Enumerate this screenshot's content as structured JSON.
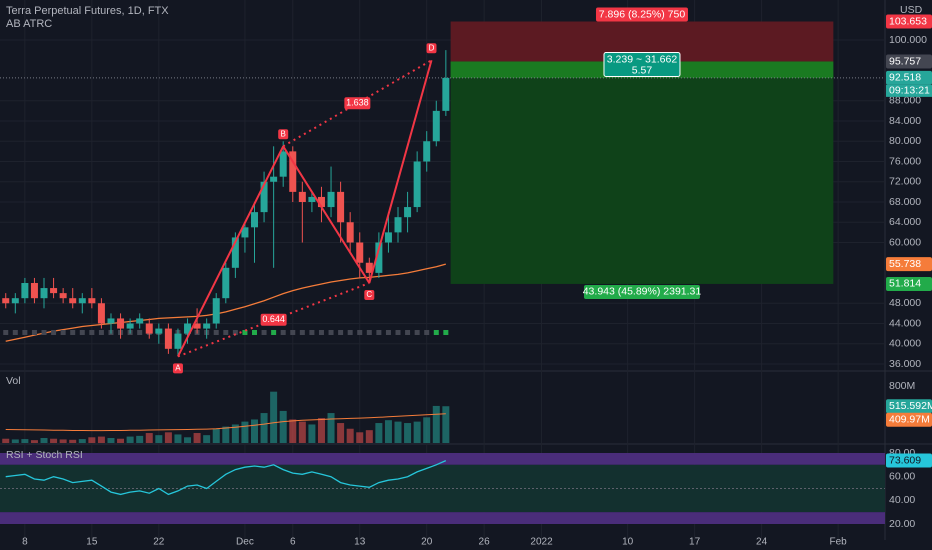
{
  "chart_data": [
    {
      "type": "candlestick",
      "symbol": "Terra Perpetual Futures, 1D, FTX",
      "indicator": "AB ATRC",
      "currency": "USD",
      "up_color": "#26a69a",
      "down_color": "#ef5350",
      "ma_color": "#f57c3a",
      "grid": true,
      "xlim": [
        -0.6,
        91.9
      ],
      "xticks": [
        {
          "value": 2,
          "label": "8"
        },
        {
          "value": 9,
          "label": "15"
        },
        {
          "value": 16,
          "label": "22"
        },
        {
          "value": 25,
          "label": "Dec"
        },
        {
          "value": 30,
          "label": "6"
        },
        {
          "value": 37,
          "label": "13"
        },
        {
          "value": 44,
          "label": "20"
        },
        {
          "value": 50,
          "label": "26"
        },
        {
          "value": 56,
          "label": "2022"
        },
        {
          "value": 65,
          "label": "10"
        },
        {
          "value": 72,
          "label": "17"
        },
        {
          "value": 79,
          "label": "24"
        },
        {
          "value": 87,
          "label": "Feb"
        }
      ],
      "ylim": [
        34.815,
        107.901
      ],
      "yticks": [
        {
          "value": 36,
          "label": "36.000"
        },
        {
          "value": 40,
          "label": "40.000"
        },
        {
          "value": 44,
          "label": "44.000"
        },
        {
          "value": 48,
          "label": "48.000"
        },
        {
          "value": 60,
          "label": "60.000"
        },
        {
          "value": 64,
          "label": "64.000"
        },
        {
          "value": 68,
          "label": "68.000"
        },
        {
          "value": 72,
          "label": "72.000"
        },
        {
          "value": 76,
          "label": "76.000"
        },
        {
          "value": 80,
          "label": "80.000"
        },
        {
          "value": 84,
          "label": "84.000"
        },
        {
          "value": 88,
          "label": "88.000"
        },
        {
          "value": 100,
          "label": "100.000"
        }
      ],
      "candles": [
        {
          "open": 49,
          "high": 50,
          "low": 47,
          "close": 48
        },
        {
          "open": 48,
          "high": 50,
          "low": 46,
          "close": 49
        },
        {
          "open": 49,
          "high": 53,
          "low": 48,
          "close": 52
        },
        {
          "open": 52,
          "high": 53,
          "low": 48,
          "close": 49
        },
        {
          "open": 49,
          "high": 53,
          "low": 47,
          "close": 51
        },
        {
          "open": 51,
          "high": 53,
          "low": 49,
          "close": 50
        },
        {
          "open": 50,
          "high": 51,
          "low": 48,
          "close": 49
        },
        {
          "open": 49,
          "high": 51,
          "low": 47,
          "close": 48
        },
        {
          "open": 48,
          "high": 50,
          "low": 46,
          "close": 49
        },
        {
          "open": 49,
          "high": 51,
          "low": 47,
          "close": 48
        },
        {
          "open": 48,
          "high": 49,
          "low": 43,
          "close": 44
        },
        {
          "open": 44,
          "high": 46,
          "low": 42,
          "close": 45
        },
        {
          "open": 45,
          "high": 46,
          "low": 41,
          "close": 43
        },
        {
          "open": 43,
          "high": 45,
          "low": 42,
          "close": 44
        },
        {
          "open": 44,
          "high": 46,
          "low": 43,
          "close": 45
        },
        {
          "open": 44,
          "high": 45,
          "low": 41,
          "close": 42
        },
        {
          "open": 42,
          "high": 44,
          "low": 40,
          "close": 43
        },
        {
          "open": 43,
          "high": 44,
          "low": 38,
          "close": 39
        },
        {
          "open": 39,
          "high": 43,
          "low": 37.5,
          "close": 42
        },
        {
          "open": 42,
          "high": 45,
          "low": 40,
          "close": 44
        },
        {
          "open": 44,
          "high": 47,
          "low": 42,
          "close": 43
        },
        {
          "open": 43,
          "high": 45,
          "low": 41,
          "close": 44
        },
        {
          "open": 44,
          "high": 50,
          "low": 43,
          "close": 49
        },
        {
          "open": 49,
          "high": 56,
          "low": 48,
          "close": 55
        },
        {
          "open": 55,
          "high": 62,
          "low": 53,
          "close": 61
        },
        {
          "open": 61,
          "high": 64,
          "low": 58,
          "close": 63
        },
        {
          "open": 63,
          "high": 68,
          "low": 56,
          "close": 66
        },
        {
          "open": 66,
          "high": 74,
          "low": 64,
          "close": 72
        },
        {
          "open": 72,
          "high": 79,
          "low": 55,
          "close": 73
        },
        {
          "open": 73,
          "high": 80,
          "low": 71,
          "close": 78
        },
        {
          "open": 78,
          "high": 79,
          "low": 68,
          "close": 70
        },
        {
          "open": 70,
          "high": 72,
          "low": 60,
          "close": 68
        },
        {
          "open": 68,
          "high": 70,
          "low": 66,
          "close": 69
        },
        {
          "open": 69,
          "high": 71,
          "low": 64,
          "close": 67
        },
        {
          "open": 67,
          "high": 75,
          "low": 65,
          "close": 70
        },
        {
          "open": 70,
          "high": 72,
          "low": 60,
          "close": 64
        },
        {
          "open": 64,
          "high": 66,
          "low": 58,
          "close": 60
        },
        {
          "open": 60,
          "high": 62,
          "low": 53,
          "close": 56
        },
        {
          "open": 56,
          "high": 57,
          "low": 52,
          "close": 54
        },
        {
          "open": 54,
          "high": 62,
          "low": 53,
          "close": 60
        },
        {
          "open": 60,
          "high": 66,
          "low": 58,
          "close": 62
        },
        {
          "open": 62,
          "high": 67,
          "low": 60,
          "close": 65
        },
        {
          "open": 65,
          "high": 70,
          "low": 62,
          "close": 67
        },
        {
          "open": 67,
          "high": 78,
          "low": 66,
          "close": 76
        },
        {
          "open": 76,
          "high": 82,
          "low": 74,
          "close": 80
        },
        {
          "open": 80,
          "high": 88,
          "low": 79,
          "close": 86
        },
        {
          "open": 86,
          "high": 98,
          "low": 85,
          "close": 92.518
        }
      ],
      "timer": "09:13:21",
      "ma": [
        40.5,
        40.9,
        41.3,
        41.7,
        42.1,
        42.5,
        42.8,
        43.1,
        43.4,
        43.6,
        43.8,
        44,
        44.2,
        44.4,
        44.6,
        44.8,
        45,
        45.1,
        45.2,
        45.3,
        45.4,
        45.6,
        45.9,
        46.3,
        46.8,
        47.3,
        47.9,
        48.5,
        49.2,
        49.9,
        50.5,
        51,
        51.4,
        51.8,
        52.2,
        52.5,
        52.8,
        53,
        53.1,
        53.3,
        53.5,
        53.7,
        54,
        54.4,
        54.8,
        55.2,
        55.738
      ],
      "squares": [
        "#434651",
        "#434651",
        "#434651",
        "#434651",
        "#434651",
        "#434651",
        "#434651",
        "#434651",
        "#434651",
        "#434651",
        "#434651",
        "#434651",
        "#434651",
        "#434651",
        "#434651",
        "#434651",
        "#434651",
        "#434651",
        "#434651",
        "#434651",
        "#434651",
        "#434651",
        "#434651",
        "#434651",
        "#434651",
        "#22ab4a",
        "#22ab4a",
        "#434651",
        "#22ab4a",
        "#434651",
        "#434651",
        "#434651",
        "#434651",
        "#434651",
        "#434651",
        "#434651",
        "#434651",
        "#434651",
        "#434651",
        "#434651",
        "#434651",
        "#434651",
        "#434651",
        "#434651",
        "#434651",
        "#22ab4a",
        "#22ab4a"
      ],
      "pattern": {
        "color": "#f23645",
        "points": [
          {
            "label": "A",
            "index": 18,
            "price": 37.5
          },
          {
            "label": "B",
            "index": 29,
            "price": 79
          },
          {
            "label": "C",
            "index": 38,
            "price": 52
          },
          {
            "label": "D",
            "index": 44.5,
            "price": 96
          }
        ],
        "ratios": [
          0.644,
          1.638
        ]
      },
      "position": {
        "x_range": [
          46.5,
          86.5
        ],
        "stop": 103.653,
        "entry": 95.757,
        "target": 51.814,
        "stop_label": "7.896 (8.25%) 750",
        "ratio_label": "3.239 ~ 31.662",
        "rr_label": "5.57",
        "target_label": "43.943 (45.89%) 2391.31"
      }
    },
    {
      "type": "bar",
      "title": "Vol",
      "ylim": [
        0,
        996
      ],
      "yticks": [
        {
          "value": 800,
          "label": "800M"
        }
      ],
      "values": [
        60,
        50,
        55,
        40,
        70,
        60,
        50,
        45,
        55,
        80,
        90,
        70,
        60,
        90,
        100,
        140,
        110,
        150,
        120,
        80,
        140,
        110,
        200,
        230,
        260,
        300,
        330,
        420,
        720,
        450,
        330,
        300,
        260,
        350,
        420,
        280,
        200,
        150,
        180,
        280,
        320,
        300,
        280,
        300,
        360,
        520,
        515.592
      ],
      "last_value_label": "515.592M",
      "ma": [
        190,
        188,
        186,
        184,
        182,
        180,
        178,
        176,
        175,
        174,
        174,
        175,
        176,
        178,
        180,
        182,
        184,
        186,
        188,
        190,
        192,
        195,
        200,
        210,
        222,
        236,
        250,
        265,
        285,
        300,
        310,
        318,
        324,
        330,
        336,
        340,
        345,
        350,
        355,
        360,
        368,
        375,
        382,
        390,
        395,
        402,
        409.97
      ],
      "ma_last_label": "409.97M",
      "ma_color": "#f57c3a"
    },
    {
      "type": "line",
      "title": "RSI + Stoch RSI",
      "color": "#26c6da",
      "ylim": [
        6.48,
        86.76
      ],
      "yticks": [
        {
          "value": 20,
          "label": "20.00"
        },
        {
          "value": 40,
          "label": "40.00"
        },
        {
          "value": 60,
          "label": "60.00"
        },
        {
          "value": 80,
          "label": "80.00"
        }
      ],
      "bands": [
        {
          "range": [
            70,
            80
          ],
          "color": "#4a2d7a"
        },
        {
          "range": [
            30,
            70
          ],
          "color": "#13302f"
        },
        {
          "range": [
            20,
            30
          ],
          "color": "#4a2d7a"
        }
      ],
      "midline": 50,
      "values": [
        60,
        61,
        62,
        58,
        57,
        60,
        58,
        55,
        56,
        57,
        52,
        47,
        45,
        47,
        48,
        46,
        50,
        45,
        48,
        52,
        53,
        50,
        56,
        62,
        66,
        68,
        69,
        68,
        70,
        66,
        63,
        62,
        64,
        62,
        60,
        55,
        53,
        52,
        51,
        55,
        57,
        58,
        60,
        64,
        67,
        70,
        73.609
      ]
    }
  ]
}
